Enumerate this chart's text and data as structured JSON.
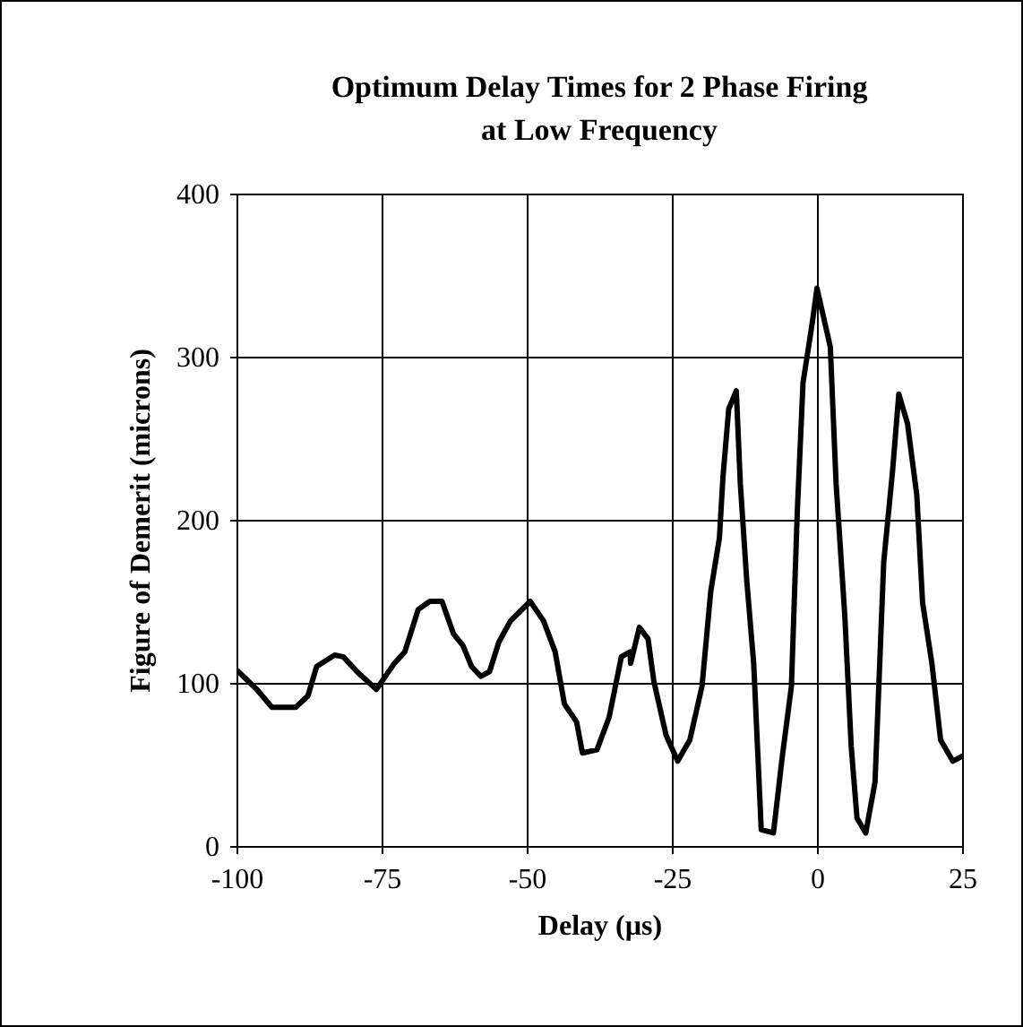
{
  "chart_data": {
    "type": "line",
    "title": "Optimum Delay Times for 2 Phase Firing at Low Frequency",
    "xlabel": "Delay (µs)",
    "ylabel": "Figure of Demerit (microns)",
    "xlim": [
      -100,
      25
    ],
    "xticks": [
      -100,
      -75,
      -50,
      -25,
      0,
      25
    ],
    "ylim": [
      0,
      400
    ],
    "yticks": [
      0,
      100,
      200,
      300,
      400
    ],
    "grid": true,
    "marker": "none",
    "line_style": "solid",
    "series": [
      {
        "color": "#000000",
        "x": [
          -100,
          -96.5,
          -93.9,
          -89.8,
          -87.7,
          -86.2,
          -83.1,
          -81.6,
          -79,
          -75.9,
          -72.8,
          -71,
          -68.7,
          -66.7,
          -64.6,
          -62.6,
          -61,
          -59.5,
          -57.9,
          -56.4,
          -54.8,
          -52.8,
          -49.4,
          -47.1,
          -45.1,
          -43.5,
          -41.4,
          -40.4,
          -37.9,
          -35.8,
          -33.7,
          -32.2,
          -32.1,
          -30.6,
          -29.1,
          -28.1,
          -26,
          -24,
          -21.9,
          -19.8,
          -18.3,
          -16.8,
          -16.2,
          -15.2,
          -13.9,
          -13.2,
          -12.1,
          -10.9,
          -9.6,
          -7.5,
          -6,
          -4.4,
          -3.4,
          -2.4,
          -0.8,
          0,
          2.3,
          3.3,
          4.8,
          5.9,
          6.9,
          8.4,
          10,
          11.5,
          13,
          14.1,
          15.6,
          17.2,
          18.2,
          19.8,
          21.3,
          23.4,
          25
        ],
        "values": [
          108,
          96,
          85,
          85,
          92,
          110,
          117,
          116,
          106,
          96,
          112,
          119,
          145,
          150,
          150,
          130,
          123,
          110,
          104,
          107,
          125,
          138,
          150,
          138,
          119,
          87,
          76,
          57,
          59,
          79,
          116,
          119,
          112,
          134,
          127,
          101,
          68,
          52,
          65,
          98,
          156,
          189,
          226,
          268,
          279,
          222,
          163,
          112,
          10,
          8,
          54,
          98,
          204,
          284,
          321,
          342,
          306,
          222,
          141,
          61,
          17,
          8,
          39,
          174,
          229,
          277,
          259,
          215,
          149,
          112,
          65,
          52,
          55
        ]
      }
    ]
  }
}
